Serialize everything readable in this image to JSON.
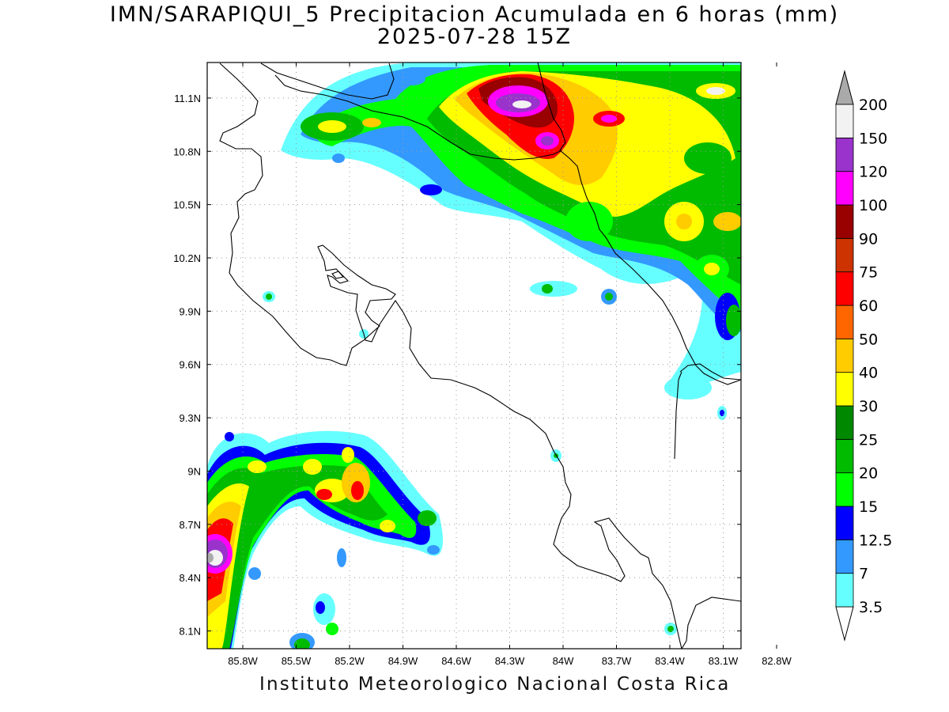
{
  "title": {
    "line1": "IMN/SARAPIQUI_5 Precipitacion Acumulada en 6 horas (mm)",
    "line2": "2025-07-28 15Z"
  },
  "credit": "Instituto Meteorologico Nacional Costa Rica",
  "map": {
    "lon_range": [
      -86.0,
      -83.0
    ],
    "lat_range": [
      8.0,
      11.3
    ],
    "lon_ticks": [
      {
        "value": -85.8,
        "label": "85.8W"
      },
      {
        "value": -85.5,
        "label": "85.5W"
      },
      {
        "value": -85.2,
        "label": "85.2W"
      },
      {
        "value": -84.9,
        "label": "84.9W"
      },
      {
        "value": -84.6,
        "label": "84.6W"
      },
      {
        "value": -84.3,
        "label": "84.3W"
      },
      {
        "value": -84.0,
        "label": "84W"
      },
      {
        "value": -83.7,
        "label": "83.7W"
      },
      {
        "value": -83.4,
        "label": "83.4W"
      },
      {
        "value": -83.1,
        "label": "83.1W"
      },
      {
        "value": -82.8,
        "label": "82.8W"
      }
    ],
    "lat_ticks": [
      {
        "value": 11.1,
        "label": "11.1N"
      },
      {
        "value": 10.8,
        "label": "10.8N"
      },
      {
        "value": 10.5,
        "label": "10.5N"
      },
      {
        "value": 10.2,
        "label": "10.2N"
      },
      {
        "value": 9.9,
        "label": "9.9N"
      },
      {
        "value": 9.6,
        "label": "9.6N"
      },
      {
        "value": 9.3,
        "label": "9.3N"
      },
      {
        "value": 9.0,
        "label": "9N"
      },
      {
        "value": 8.7,
        "label": "8.7N"
      },
      {
        "value": 8.4,
        "label": "8.4N"
      },
      {
        "value": 8.1,
        "label": "8.1N"
      }
    ],
    "grid": "dotted",
    "region": "Costa Rica"
  },
  "colorbar": {
    "orientation": "vertical",
    "units": "mm",
    "levels": [
      {
        "label": "3.5",
        "color": "#ffffff"
      },
      {
        "label": "7",
        "color": "#66ffff"
      },
      {
        "label": "12.5",
        "color": "#3399ff"
      },
      {
        "label": "15",
        "color": "#0000ff"
      },
      {
        "label": "20",
        "color": "#00ff00"
      },
      {
        "label": "25",
        "color": "#00bb00"
      },
      {
        "label": "30",
        "color": "#008800"
      },
      {
        "label": "40",
        "color": "#ffff00"
      },
      {
        "label": "50",
        "color": "#ffcc00"
      },
      {
        "label": "60",
        "color": "#ff6600"
      },
      {
        "label": "75",
        "color": "#ff0000"
      },
      {
        "label": "90",
        "color": "#cc3300"
      },
      {
        "label": "100",
        "color": "#990000"
      },
      {
        "label": "120",
        "color": "#ff00ff"
      },
      {
        "label": "150",
        "color": "#9933cc"
      },
      {
        "label": "200",
        "color": "#f2f2f2"
      }
    ],
    "above_max_color": "#aaaaaa"
  }
}
